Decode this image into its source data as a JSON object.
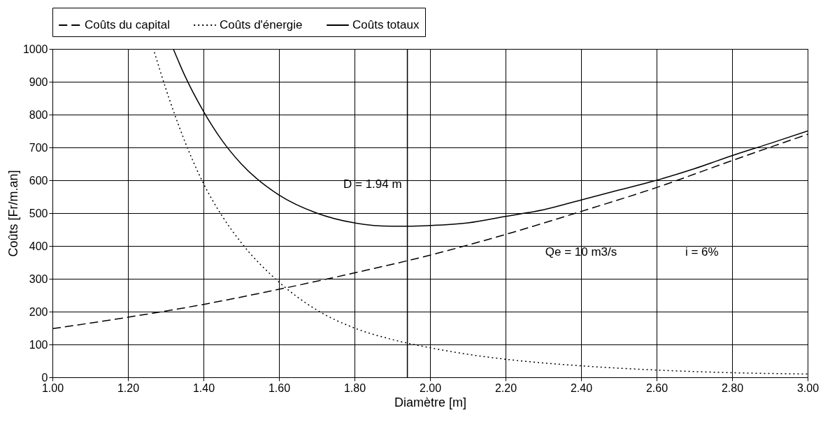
{
  "chart_data": {
    "type": "line",
    "xlabel": "Diamètre [m]",
    "ylabel": "Coûts [Fr/m.an]",
    "x": [
      1.0,
      1.2,
      1.4,
      1.6,
      1.8,
      2.0,
      2.2,
      2.4,
      2.6,
      2.8,
      3.0
    ],
    "series": [
      {
        "name": "Coûts du capital",
        "color": "#000000",
        "line_style": "dashed",
        "values": [
          148,
          183,
          222,
          268,
          318,
          372,
          435,
          505,
          578,
          660,
          740
        ]
      },
      {
        "name": "Coûts d'énergie",
        "color": "#000000",
        "line_style": "dotted",
        "x": [
          1.27,
          1.3,
          1.35,
          1.4,
          1.45,
          1.5,
          1.6,
          1.7,
          1.8,
          1.9,
          2.0,
          2.1,
          2.2,
          2.4,
          2.6,
          2.8,
          3.0
        ],
        "values": [
          990,
          880,
          720,
          590,
          490,
          410,
          290,
          205,
          150,
          115,
          90,
          70,
          55,
          35,
          22,
          14,
          10
        ]
      },
      {
        "name": "Coûts totaux",
        "color": "#000000",
        "line_style": "solid",
        "x": [
          1.32,
          1.35,
          1.4,
          1.45,
          1.5,
          1.6,
          1.7,
          1.8,
          1.9,
          1.94,
          2.0,
          2.1,
          2.2,
          2.3,
          2.4,
          2.5,
          2.6,
          2.7,
          2.8,
          2.9,
          3.0
        ],
        "values": [
          1000,
          920,
          810,
          720,
          650,
          555,
          500,
          470,
          460,
          460,
          462,
          470,
          490,
          510,
          540,
          570,
          600,
          635,
          675,
          712,
          750
        ]
      }
    ],
    "xlim": [
      1.0,
      3.0
    ],
    "xticks": [
      {
        "value": 1.0,
        "label": "1.00"
      },
      {
        "value": 1.2,
        "label": "1.20"
      },
      {
        "value": 1.4,
        "label": "1.40"
      },
      {
        "value": 1.6,
        "label": "1.60"
      },
      {
        "value": 1.8,
        "label": "1.80"
      },
      {
        "value": 2.0,
        "label": "2.00"
      },
      {
        "value": 2.2,
        "label": "2.20"
      },
      {
        "value": 2.4,
        "label": "2.40"
      },
      {
        "value": 2.6,
        "label": "2.60"
      },
      {
        "value": 2.8,
        "label": "2.80"
      },
      {
        "value": 3.0,
        "label": "3.00"
      }
    ],
    "ylim": [
      0,
      1000
    ],
    "yticks": [
      0,
      100,
      200,
      300,
      400,
      500,
      600,
      700,
      800,
      900,
      1000
    ],
    "grid": true,
    "legend": "top",
    "ref_lines": [
      {
        "axis": "x",
        "value": 1.94,
        "label": "D = 1.94 m"
      }
    ],
    "annotations": [
      "Qe = 10 m3/s",
      "i = 6%"
    ]
  }
}
